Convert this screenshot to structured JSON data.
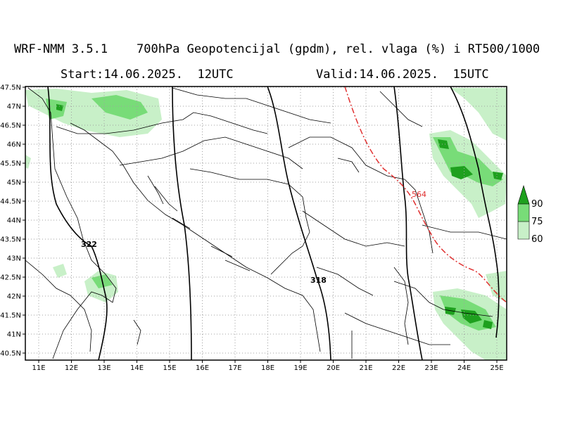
{
  "header": {
    "title": "WRF-NMM 3.5.1    700hPa Geopotencijal (gpdm), rel. vlaga (%) i RT500/1000",
    "start": "Start:14.06.2025.  12UTC",
    "valid": "Valid:14.06.2025.  15UTC"
  },
  "map": {
    "lon_labels": [
      "11E",
      "12E",
      "13E",
      "14E",
      "15E",
      "16E",
      "17E",
      "18E",
      "19E",
      "20E",
      "21E",
      "22E",
      "23E",
      "24E",
      "25E"
    ],
    "lat_labels": [
      "47.5N",
      "47N",
      "46.5N",
      "46N",
      "45.5N",
      "45N",
      "44.5N",
      "44N",
      "43.5N",
      "43N",
      "42.5N",
      "42N",
      "41.5N",
      "41N",
      "40.5N"
    ],
    "contours": {
      "c322": "322",
      "c318": "318",
      "c564": "564"
    },
    "colors": {
      "humidity_60": "#c8f0c8",
      "humidity_75": "#78dc78",
      "humidity_90": "#1ea01e",
      "thickness_line": "#e03030"
    }
  },
  "legend": {
    "labels": [
      "90",
      "75",
      "60"
    ]
  }
}
